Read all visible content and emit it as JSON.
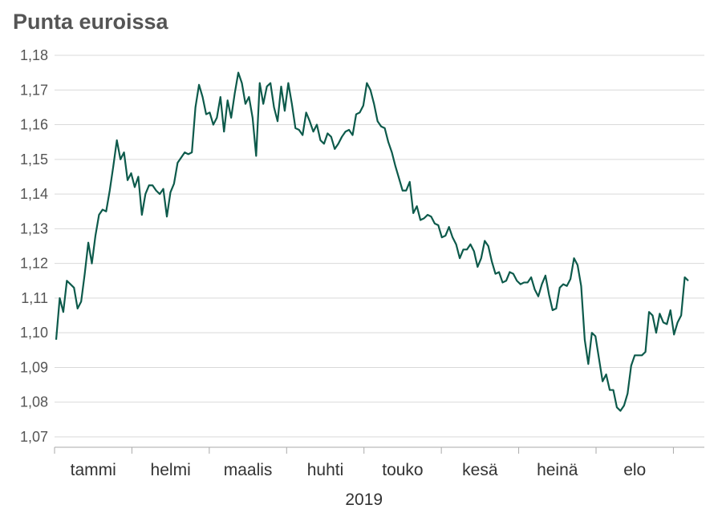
{
  "chart_data": {
    "type": "line",
    "title": "Punta euroissa",
    "xlabel": "2019",
    "ylabel": "",
    "ylim": [
      1.07,
      1.18
    ],
    "yticks": [
      "1,07",
      "1,08",
      "1,09",
      "1,10",
      "1,11",
      "1,12",
      "1,13",
      "1,14",
      "1,15",
      "1,16",
      "1,17",
      "1,18"
    ],
    "grid": true,
    "months": [
      "tammi",
      "helmi",
      "maalis",
      "huhti",
      "touko",
      "kesä",
      "heinä",
      "elo"
    ],
    "colors": {
      "line": "#0d5a4b",
      "grid": "#d9d9d9",
      "axis": "#aaaaaa"
    },
    "series": [
      {
        "values": [
          1.098,
          1.11,
          1.106,
          1.115,
          1.114,
          1.113,
          1.107,
          1.109,
          1.117,
          1.126,
          1.12,
          1.128,
          1.134,
          1.1355,
          1.135,
          1.141,
          1.148,
          1.1555,
          1.15,
          1.152,
          1.144,
          1.146,
          1.142,
          1.145,
          1.134,
          1.14,
          1.1425,
          1.1425,
          1.141,
          1.14,
          1.1415,
          1.1335,
          1.1405,
          1.143,
          1.149,
          1.1505,
          1.152,
          1.1515,
          1.152,
          1.165,
          1.1715,
          1.168,
          1.163,
          1.1635,
          1.16,
          1.162,
          1.168,
          1.158,
          1.167,
          1.162,
          1.169,
          1.175,
          1.172,
          1.166,
          1.168,
          1.162,
          1.151,
          1.172,
          1.166,
          1.171,
          1.172,
          1.165,
          1.161,
          1.171,
          1.164,
          1.172,
          1.166,
          1.159,
          1.1585,
          1.157,
          1.1635,
          1.161,
          1.158,
          1.16,
          1.1555,
          1.1545,
          1.1575,
          1.1565,
          1.153,
          1.1545,
          1.1565,
          1.158,
          1.1585,
          1.157,
          1.163,
          1.1635,
          1.1655,
          1.172,
          1.17,
          1.166,
          1.161,
          1.1595,
          1.159,
          1.155,
          1.152,
          1.148,
          1.1445,
          1.141,
          1.141,
          1.1435,
          1.1345,
          1.1365,
          1.1325,
          1.133,
          1.134,
          1.1335,
          1.1315,
          1.131,
          1.1275,
          1.128,
          1.1305,
          1.1275,
          1.1255,
          1.1215,
          1.124,
          1.124,
          1.1255,
          1.1235,
          1.119,
          1.1215,
          1.1265,
          1.125,
          1.1205,
          1.117,
          1.1175,
          1.1145,
          1.115,
          1.1175,
          1.117,
          1.115,
          1.114,
          1.1145,
          1.1145,
          1.116,
          1.1125,
          1.1105,
          1.114,
          1.1165,
          1.111,
          1.1065,
          1.107,
          1.113,
          1.114,
          1.1135,
          1.1155,
          1.1215,
          1.1195,
          1.1135,
          1.098,
          1.091,
          1.1,
          1.099,
          1.0925,
          1.086,
          1.088,
          1.0835,
          1.0835,
          1.0785,
          1.0775,
          1.079,
          1.0825,
          1.0905,
          1.0935,
          1.0935,
          1.0935,
          1.0945,
          1.106,
          1.105,
          1.1,
          1.1055,
          1.103,
          1.1025,
          1.1065,
          1.0995,
          1.103,
          1.105,
          1.116,
          1.115
        ]
      }
    ]
  }
}
